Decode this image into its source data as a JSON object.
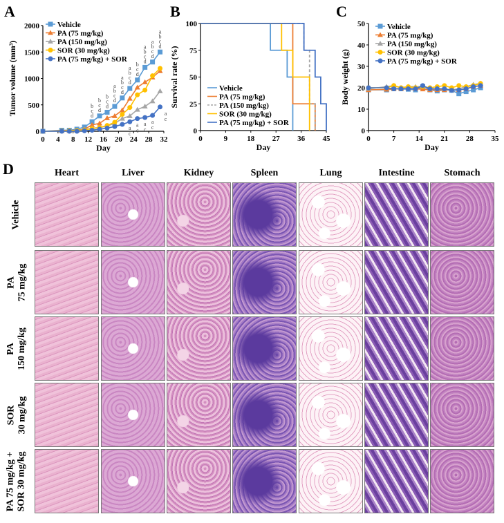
{
  "panels": {
    "A": "A",
    "B": "B",
    "C": "C",
    "D": "D"
  },
  "colors": {
    "Vehicle": "#5b9bd5",
    "PA (75 mg/kg)": "#ed7d31",
    "PA (150 mg/kg)": "#a5a5a5",
    "SOR (30 mg/kg)": "#ffc000",
    "PA (75 mg/kg) + SOR": "#4472c4"
  },
  "chart_data": [
    {
      "type": "line",
      "id": "A",
      "xlabel": "Day",
      "ylabel": "Tumor volume (mm³)",
      "xlim": [
        0,
        32
      ],
      "ylim": [
        0,
        2000
      ],
      "xticks": [
        0,
        4,
        8,
        12,
        16,
        20,
        24,
        28,
        32
      ],
      "yticks": [
        0,
        500,
        1000,
        1500,
        2000
      ],
      "legend": "top-left",
      "grid": false,
      "x": [
        0,
        5,
        7,
        9,
        11,
        13,
        15,
        17,
        19,
        21,
        23,
        25,
        27,
        29,
        31
      ],
      "series": [
        {
          "name": "Vehicle",
          "marker": "square",
          "values": [
            0,
            20,
            20,
            40,
            80,
            180,
            290,
            360,
            470,
            630,
            810,
            970,
            1210,
            1310,
            1500
          ]
        },
        {
          "name": "PA (75 mg/kg)",
          "marker": "triangle",
          "values": [
            0,
            10,
            15,
            20,
            40,
            120,
            150,
            250,
            290,
            400,
            620,
            830,
            930,
            1020,
            1140
          ]
        },
        {
          "name": "PA (150 mg/kg)",
          "marker": "triangle",
          "values": [
            0,
            5,
            10,
            15,
            30,
            60,
            70,
            100,
            150,
            240,
            290,
            410,
            470,
            570,
            760
          ]
        },
        {
          "name": "SOR (30 mg/kg)",
          "marker": "circle",
          "values": [
            0,
            5,
            10,
            15,
            25,
            50,
            70,
            110,
            170,
            320,
            450,
            690,
            780,
            1050,
            1190
          ]
        },
        {
          "name": "PA (75 mg/kg) + SOR",
          "marker": "circle",
          "values": [
            0,
            0,
            0,
            0,
            10,
            20,
            40,
            60,
            90,
            130,
            180,
            240,
            260,
            300,
            460
          ]
        }
      ],
      "annotations_top": [
        {
          "day": 13,
          "text": "b c d"
        },
        {
          "day": 15,
          "text": "b c d"
        },
        {
          "day": 17,
          "text": "b c d"
        },
        {
          "day": 19,
          "text": "a b c d"
        },
        {
          "day": 21,
          "text": "a b c d"
        },
        {
          "day": 23,
          "text": "a b c d"
        },
        {
          "day": 25,
          "text": "b c d"
        },
        {
          "day": 27,
          "text": "a b c d"
        },
        {
          "day": 29,
          "text": "a b c d"
        },
        {
          "day": 31,
          "text": "a b c d"
        }
      ],
      "annotations_bottom": [
        {
          "day": 23,
          "text": "a c"
        },
        {
          "day": 25,
          "text": "a c"
        },
        {
          "day": 27,
          "text": "a c"
        },
        {
          "day": 29,
          "text": "a c"
        },
        {
          "day": 31,
          "text": "a c"
        }
      ]
    },
    {
      "type": "line",
      "id": "B",
      "step": true,
      "xlabel": "Day",
      "ylabel": "Survival rate (%)",
      "xlim": [
        0,
        45
      ],
      "ylim": [
        0,
        100
      ],
      "xticks": [
        0,
        9,
        18,
        27,
        36,
        45
      ],
      "yticks": [
        0,
        25,
        50,
        75,
        100
      ],
      "legend": "bottom-left",
      "grid": false,
      "series": [
        {
          "name": "Vehicle",
          "x": [
            0,
            25,
            31,
            33
          ],
          "values": [
            100,
            75,
            50,
            0
          ]
        },
        {
          "name": "PA (75 mg/kg)",
          "x": [
            0,
            33,
            41
          ],
          "values": [
            100,
            25,
            0
          ]
        },
        {
          "name": "PA (150 mg/kg)",
          "dashed": true,
          "x": [
            0,
            37,
            39,
            41
          ],
          "values": [
            100,
            75,
            25,
            0
          ]
        },
        {
          "name": "SOR (30 mg/kg)",
          "x": [
            0,
            29,
            33,
            39
          ],
          "values": [
            100,
            75,
            50,
            0
          ]
        },
        {
          "name": "PA (75 mg/kg) + SOR",
          "x": [
            0,
            37,
            41,
            43,
            45
          ],
          "values": [
            100,
            75,
            50,
            25,
            0
          ]
        }
      ]
    },
    {
      "type": "line",
      "id": "C",
      "xlabel": "Day",
      "ylabel": "Body weight (g)",
      "xlim": [
        0,
        35
      ],
      "ylim": [
        0,
        50
      ],
      "xticks": [
        0,
        7,
        14,
        21,
        28,
        35
      ],
      "yticks": [
        0,
        10,
        20,
        30,
        40,
        50
      ],
      "legend": "top-left",
      "grid": false,
      "x": [
        0,
        5,
        7,
        9,
        11,
        13,
        15,
        17,
        19,
        21,
        23,
        25,
        27,
        29,
        31
      ],
      "series": [
        {
          "name": "Vehicle",
          "marker": "square",
          "values": [
            19,
            19,
            19.5,
            19.5,
            19.3,
            19,
            20.5,
            19,
            18.5,
            19,
            18.8,
            17.2,
            18.2,
            19,
            20
          ]
        },
        {
          "name": "PA (75 mg/kg)",
          "marker": "triangle",
          "values": [
            19,
            19.2,
            19.5,
            19.5,
            19.8,
            19.5,
            19.3,
            19,
            19,
            19,
            19,
            19,
            19.5,
            20.5,
            21
          ]
        },
        {
          "name": "PA (150 mg/kg)",
          "marker": "triangle",
          "values": [
            19.5,
            20.5,
            21,
            20,
            20.5,
            20.5,
            20.5,
            19.5,
            19.5,
            19.5,
            19,
            19.5,
            20.5,
            21.5,
            22
          ]
        },
        {
          "name": "SOR (30 mg/kg)",
          "marker": "circle",
          "values": [
            20,
            20,
            21,
            20,
            20.5,
            20,
            20.5,
            20,
            20.5,
            21,
            20,
            21,
            20.5,
            21,
            22
          ]
        },
        {
          "name": "PA (75 mg/kg) + SOR",
          "marker": "circle",
          "values": [
            20,
            20,
            19.5,
            19.5,
            19.5,
            19.5,
            21,
            19.5,
            19.5,
            19.5,
            18.8,
            19,
            19.5,
            20.5,
            21
          ]
        }
      ]
    }
  ],
  "histology": {
    "columns": [
      "Heart",
      "Liver",
      "Kidney",
      "Spleen",
      "Lung",
      "Intestine",
      "Stomach"
    ],
    "rows": [
      "Vehicle",
      "PA\n75 mg/kg",
      "PA\n150 mg/kg",
      "SOR\n30 mg/kg",
      "PA 75 mg/kg +\nSOR 30 mg/kg"
    ]
  }
}
